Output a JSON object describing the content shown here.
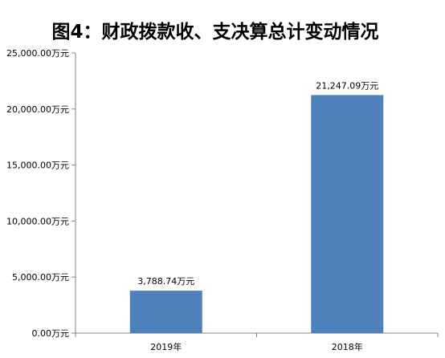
{
  "chart_data": {
    "type": "bar",
    "title": "图4：财政拨款收、支决算总计变动情况",
    "categories": [
      "2019年",
      "2018年"
    ],
    "values": [
      3788.74,
      21247.09
    ],
    "data_labels": [
      "3,788.74万元",
      "21,247.09万元"
    ],
    "ylim": [
      0,
      25000
    ],
    "yticks": [
      0,
      5000,
      10000,
      15000,
      20000,
      25000
    ],
    "ytick_labels": [
      "0.00万元",
      "5,000.00万元",
      "10,000.00万元",
      "15,000.00万元",
      "20,000.00万元",
      "25,000.00万元"
    ],
    "xlabel": "",
    "ylabel": "",
    "grid": false,
    "legend": "none",
    "colors": {
      "bar": "#4F81BD",
      "axis": "#868686"
    }
  }
}
